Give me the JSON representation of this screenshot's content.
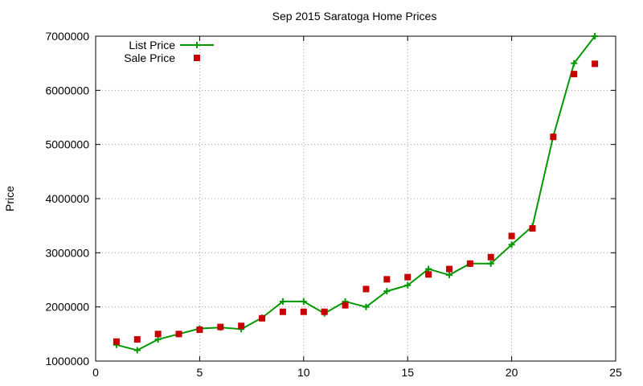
{
  "chart_data": {
    "type": "line",
    "title": "Sep 2015 Saratoga Home Prices",
    "xlabel": "",
    "ylabel": "Price",
    "xlim": [
      0,
      25
    ],
    "ylim": [
      1000000,
      7000000
    ],
    "xticks": [
      0,
      5,
      10,
      15,
      20,
      25
    ],
    "yticks": [
      1000000,
      2000000,
      3000000,
      4000000,
      5000000,
      6000000,
      7000000
    ],
    "grid": true,
    "legend_position": "top-left",
    "series": [
      {
        "name": "List Price",
        "style": "line-with-plus-markers",
        "color": "#009900",
        "x": [
          1,
          2,
          3,
          4,
          5,
          6,
          7,
          8,
          9,
          10,
          11,
          12,
          13,
          14,
          15,
          16,
          17,
          18,
          19,
          20,
          21,
          22,
          23,
          24
        ],
        "y": [
          1300000,
          1200000,
          1400000,
          1500000,
          1600000,
          1620000,
          1590000,
          1800000,
          2100000,
          2100000,
          1880000,
          2100000,
          2000000,
          2290000,
          2400000,
          2700000,
          2590000,
          2800000,
          2800000,
          3150000,
          3490000,
          5150000,
          6500000,
          7000000
        ]
      },
      {
        "name": "Sale Price",
        "style": "square-markers",
        "color": "#c80000",
        "x": [
          1,
          2,
          3,
          4,
          5,
          6,
          7,
          8,
          9,
          10,
          11,
          12,
          13,
          14,
          15,
          16,
          17,
          18,
          19,
          20,
          21,
          22,
          23,
          24
        ],
        "y": [
          1360000,
          1400000,
          1500000,
          1500000,
          1580000,
          1630000,
          1650000,
          1790000,
          1910000,
          1910000,
          1910000,
          2030000,
          2330000,
          2510000,
          2550000,
          2600000,
          2700000,
          2800000,
          2920000,
          3310000,
          3450000,
          5140000,
          6300000,
          6490000
        ]
      }
    ]
  }
}
